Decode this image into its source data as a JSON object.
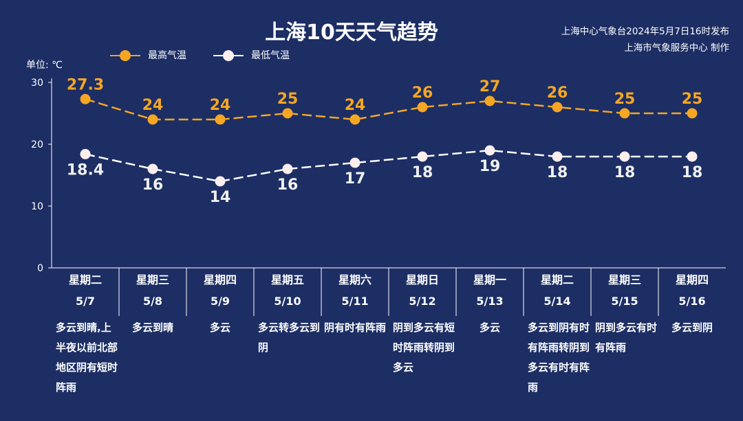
{
  "title": "上海10天天气趋势",
  "publisher": {
    "line1": "上海中心气象台2024年5月7日16时发布",
    "line2": "上海市气象服务中心 制作"
  },
  "colors": {
    "background": "#1c2e64",
    "high": "#f5a623",
    "low": "#ffffff",
    "axis": "#ffffff"
  },
  "chart_data": {
    "type": "line",
    "unit_label": "单位: ℃",
    "ylim": [
      0,
      30
    ],
    "yticks": [
      "0",
      "10",
      "20",
      "30"
    ],
    "categories": [
      {
        "weekday": "星期二",
        "date": "5/7",
        "weather": "多云到晴,上半夜以前北部地区阴有短时阵雨"
      },
      {
        "weekday": "星期三",
        "date": "5/8",
        "weather": "多云到晴"
      },
      {
        "weekday": "星期四",
        "date": "5/9",
        "weather": "多云"
      },
      {
        "weekday": "星期五",
        "date": "5/10",
        "weather": "多云转多云到阴"
      },
      {
        "weekday": "星期六",
        "date": "5/11",
        "weather": "阴有时有阵雨"
      },
      {
        "weekday": "星期日",
        "date": "5/12",
        "weather": "阴到多云有短时阵雨转阴到多云"
      },
      {
        "weekday": "星期一",
        "date": "5/13",
        "weather": "多云"
      },
      {
        "weekday": "星期二",
        "date": "5/14",
        "weather": "多云到阴有时有阵雨转阴到多云有时有阵雨"
      },
      {
        "weekday": "星期三",
        "date": "5/15",
        "weather": "阴到多云有时有阵雨"
      },
      {
        "weekday": "星期四",
        "date": "5/16",
        "weather": "多云到阴"
      }
    ],
    "series": [
      {
        "name": "最高气温",
        "values": [
          27.3,
          24,
          24,
          25,
          24,
          26,
          27,
          26,
          25,
          25
        ],
        "labels": [
          "27.3",
          "24",
          "24",
          "25",
          "24",
          "26",
          "27",
          "26",
          "25",
          "25"
        ]
      },
      {
        "name": "最低气温",
        "values": [
          18.4,
          16,
          14,
          16,
          17,
          18,
          19,
          18,
          18,
          18
        ],
        "labels": [
          "18.4",
          "16",
          "14",
          "16",
          "17",
          "18",
          "19",
          "18",
          "18",
          "18"
        ]
      }
    ],
    "grid": false,
    "legend_position": "top-left"
  }
}
